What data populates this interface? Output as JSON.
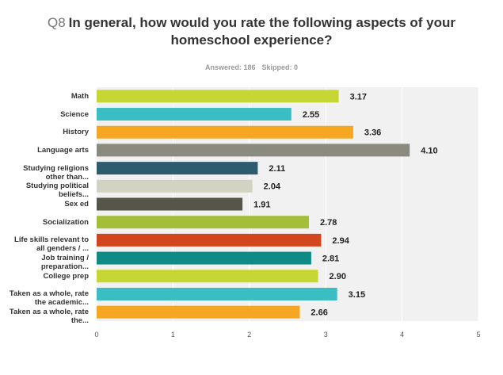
{
  "question": "Q8",
  "title": "In general, how would you rate the following aspects of your homeschool experience?",
  "answered": "Answered: 186",
  "skipped": "Skipped: 0",
  "chart_data": {
    "type": "bar",
    "orientation": "horizontal",
    "categories": [
      "Math",
      "Science",
      "History",
      "Language arts",
      "Studying religions other than...",
      "Studying political beliefs...",
      "Sex ed",
      "Socialization",
      "Life skills relevant to all genders / ...",
      "Job training / preparation...",
      "College prep",
      "Taken as a whole, rate the academic...",
      "Taken as a whole, rate the..."
    ],
    "values": [
      3.17,
      2.55,
      3.36,
      4.1,
      2.11,
      2.04,
      1.91,
      2.78,
      2.94,
      2.81,
      2.9,
      3.15,
      2.66
    ],
    "value_labels": [
      "3.17",
      "2.55",
      "3.36",
      "4.10",
      "2.11",
      "2.04",
      "1.91",
      "2.78",
      "2.94",
      "2.81",
      "2.90",
      "3.15",
      "2.66"
    ],
    "colors": [
      "#c6d634",
      "#3bbdc4",
      "#f5a623",
      "#8a8b7e",
      "#2e5b6d",
      "#d3d3c3",
      "#55554a",
      "#a5be3a",
      "#d2461f",
      "#0f8a84",
      "#c6d634",
      "#3bbdc4",
      "#f5a623"
    ],
    "xlim": [
      0,
      5
    ],
    "xticks": [
      0,
      1,
      2,
      3,
      4,
      5
    ],
    "grid": true
  }
}
